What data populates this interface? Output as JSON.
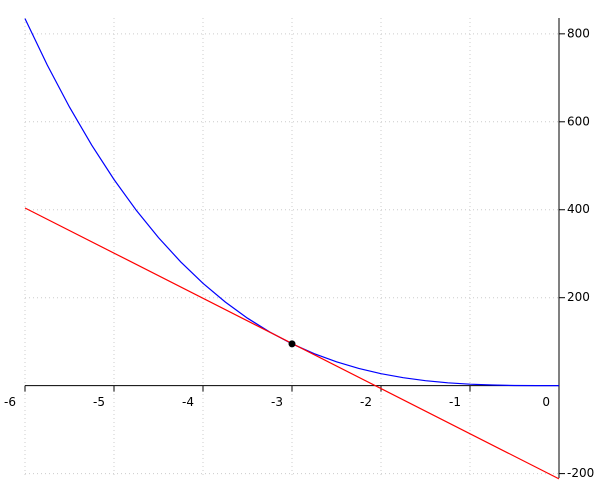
{
  "chart_data": {
    "type": "line",
    "series": [
      {
        "color": "#0000ff",
        "x": [
          -6,
          -5.75,
          -5.5,
          -5.25,
          -5,
          -4.75,
          -4.5,
          -4.25,
          -4,
          -3.75,
          -3.5,
          -3.25,
          -3,
          -2.75,
          -2.5,
          -2.25,
          -2,
          -1.75,
          -1.5,
          -1.25,
          -1,
          -0.75,
          -0.5,
          -0.25,
          0
        ],
        "values": [
          834.6,
          729.2,
          633.4,
          546.8,
          468.8,
          398.8,
          336.6,
          281.3,
          232.7,
          190.2,
          153.4,
          121.9,
          95.1,
          72.6,
          54.2,
          39.1,
          27.2,
          18.1,
          11.3,
          6.5,
          3.3,
          1.4,
          0.4,
          0.05,
          0
        ]
      },
      {
        "color": "#ff0000",
        "x": [
          -6,
          0
        ],
        "values": [
          404,
          -212
        ]
      },
      {
        "color": "#000000",
        "x": [
          -3
        ],
        "values": [
          95
        ],
        "marker": "circle"
      }
    ],
    "xlim": [
      -6,
      0
    ],
    "ylim": [
      -210,
      836
    ],
    "xticks": [
      -6,
      -5,
      -4,
      -3,
      -2,
      -1,
      0
    ],
    "yticks": [
      -200,
      200,
      400,
      600,
      800
    ],
    "grid": true
  }
}
